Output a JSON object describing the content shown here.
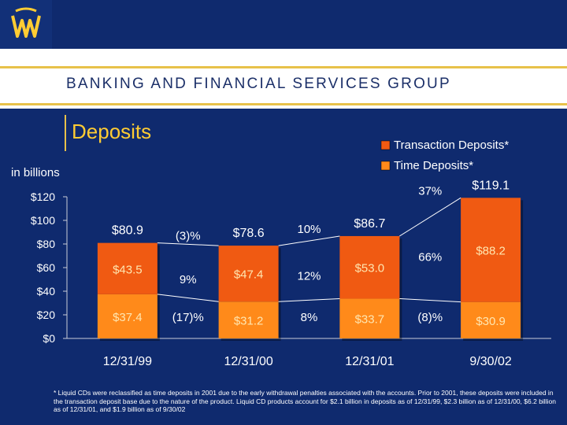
{
  "header": {
    "group_name": "BANKING AND FINANCIAL SERVICES GROUP"
  },
  "slide": {
    "title": "Deposits",
    "units": "in billions",
    "footnote": "* Liquid CDs were reclassified as time deposits in 2001 due to the early withdrawal penalties associated with the accounts.  Prior to 2001, these deposits were included in the transaction deposit base due to the nature of the product.  Liquid CD products account for $2.1 billion in deposits as of 12/31/99, $2.3 billion as of 12/31/00, $6.2 billion as of 12/31/01, and $1.9 billion as of 9/30/02"
  },
  "colors": {
    "background": "#0f2a6e",
    "transaction": "#f05a12",
    "time": "#ff8a1a",
    "text": "#ffffff",
    "title": "#ffcc33",
    "accent": "#e8c14a"
  },
  "chart_data": {
    "type": "bar",
    "stacked": true,
    "categories": [
      "12/31/99",
      "12/31/00",
      "12/31/01",
      "9/30/02"
    ],
    "series": [
      {
        "name": "Time Deposits*",
        "values": [
          37.4,
          31.2,
          33.7,
          30.9
        ],
        "labels": [
          "$37.4",
          "$31.2",
          "$33.7",
          "$30.9"
        ]
      },
      {
        "name": "Transaction Deposits*",
        "values": [
          43.5,
          47.4,
          53.0,
          88.2
        ],
        "labels": [
          "$43.5",
          "$47.4",
          "$53.0",
          "$88.2"
        ]
      }
    ],
    "totals": [
      80.9,
      78.6,
      86.7,
      119.1
    ],
    "total_labels": [
      "$80.9",
      "$78.6",
      "$86.7",
      "$119.1"
    ],
    "growth": {
      "total": [
        "(3)%",
        "10%",
        "37%"
      ],
      "transaction": [
        "9%",
        "12%",
        "66%"
      ],
      "time": [
        "(17)%",
        "8%",
        "(8)%"
      ]
    },
    "ylim": [
      0,
      120
    ],
    "yticks": [
      0,
      20,
      40,
      60,
      80,
      100,
      120
    ],
    "ytick_labels": [
      "$0",
      "$20",
      "$40",
      "$60",
      "$80",
      "$100",
      "$120"
    ],
    "legend": [
      "Transaction Deposits*",
      "Time Deposits*"
    ],
    "legend_position": "top-right"
  }
}
